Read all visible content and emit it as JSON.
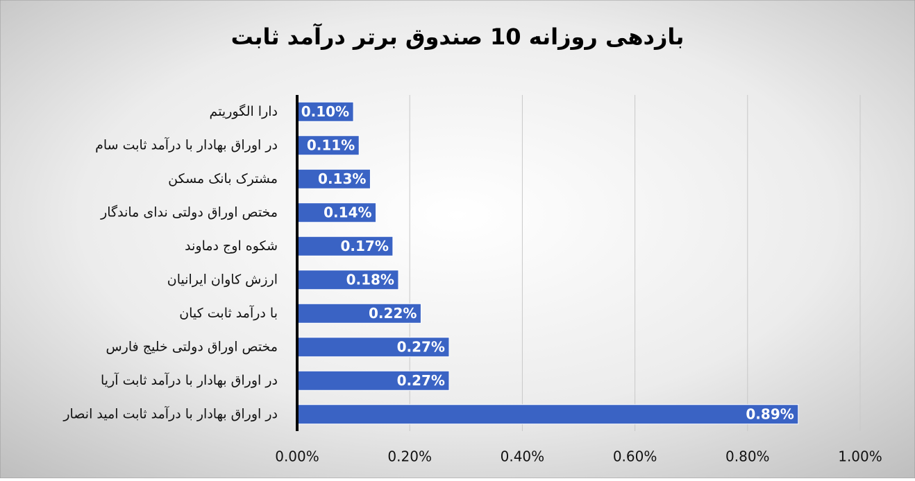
{
  "chart_data": {
    "type": "hbar",
    "title": "بازدهی روزانه 10 صندوق برتر درآمد ثابت",
    "categories": [
      "دارا الگوریتم",
      "در اوراق بهادار با درآمد ثابت سام",
      "مشترک بانک مسکن",
      "مختص اوراق دولتی ندای ماندگار",
      "شکوه اوج دماوند",
      "ارزش کاوان ایرانیان",
      "با درآمد ثابت کیان",
      "مختص اوراق دولتی خلیج فارس",
      "در اوراق بهادار با درآمد ثابت آریا",
      "در اوراق بهادار با درآمد ثابت امید انصار"
    ],
    "values": [
      0.1,
      0.11,
      0.13,
      0.14,
      0.17,
      0.18,
      0.22,
      0.27,
      0.27,
      0.89
    ],
    "value_labels": [
      "0.10%",
      "0.11%",
      "0.13%",
      "0.14%",
      "0.17%",
      "0.18%",
      "0.22%",
      "0.27%",
      "0.27%",
      "0.89%"
    ],
    "color": "#3a63c4",
    "xlim": [
      0,
      1
    ],
    "xticks": [
      {
        "value": 0,
        "label": "0.00%"
      },
      {
        "value": 0.2,
        "label": "0.20%"
      },
      {
        "value": 0.4,
        "label": "0.40%"
      },
      {
        "value": 0.6,
        "label": "0.60%"
      },
      {
        "value": 0.8,
        "label": "0.80%"
      },
      {
        "value": 1,
        "label": "1.00%"
      }
    ],
    "grid": true
  }
}
